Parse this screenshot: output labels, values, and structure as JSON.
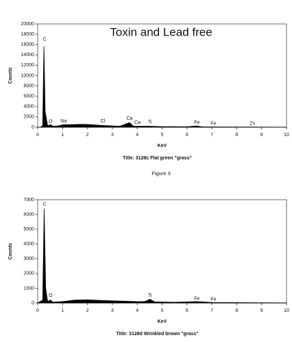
{
  "chart_data": [
    {
      "type": "area",
      "title": "Toxin and Lead free",
      "y_label": "Counts",
      "x_label": "KeV",
      "caption": "Title: 3128c Flat green \"grass\"",
      "color": "#000000",
      "title_color": "#e8802e",
      "xlim": [
        0,
        10
      ],
      "xticks": [
        0,
        1,
        2,
        3,
        4,
        5,
        6,
        7,
        8,
        9,
        10
      ],
      "ylim": [
        0,
        20000
      ],
      "yticks": [
        0,
        2000,
        4000,
        6000,
        8000,
        10000,
        12000,
        14000,
        16000,
        18000,
        20000
      ],
      "x": [
        0,
        0.1,
        0.2,
        0.25,
        0.3,
        0.4,
        0.52,
        0.6,
        0.8,
        1.04,
        1.3,
        1.6,
        2.0,
        2.6,
        2.8,
        3.3,
        3.69,
        3.85,
        4.5,
        5,
        6,
        6.4,
        6.6,
        7,
        8,
        8.6,
        9,
        10
      ],
      "values": [
        0,
        0,
        300,
        15700,
        3000,
        300,
        500,
        200,
        250,
        500,
        500,
        550,
        550,
        350,
        300,
        200,
        900,
        200,
        200,
        120,
        100,
        250,
        80,
        60,
        40,
        40,
        30,
        20
      ],
      "annotations": [
        {
          "text": "C",
          "x": 0.28,
          "y": 17000
        },
        {
          "text": "O",
          "x": 0.52,
          "y": 1100
        },
        {
          "text": "Na",
          "x": 1.04,
          "y": 1200
        },
        {
          "text": "Cl",
          "x": 2.62,
          "y": 1200
        },
        {
          "text": "Ca",
          "x": 3.69,
          "y": 1700
        },
        {
          "text": "Ca",
          "x": 4.01,
          "y": 900
        },
        {
          "text": "Ti",
          "x": 4.51,
          "y": 1000
        },
        {
          "text": "Fe",
          "x": 6.4,
          "y": 900
        },
        {
          "text": "Fe",
          "x": 7.06,
          "y": 700
        },
        {
          "text": "Zn",
          "x": 8.63,
          "y": 700
        }
      ]
    },
    {
      "type": "area",
      "y_label": "Counts",
      "x_label": "KeV",
      "caption": "Title: 3128d Wrinkled brown \"grass\"",
      "color": "#000000",
      "xlim": [
        0,
        10
      ],
      "xticks": [
        0,
        1,
        2,
        3,
        4,
        5,
        6,
        7,
        8,
        9,
        10
      ],
      "ylim": [
        0,
        7000
      ],
      "yticks": [
        0,
        1000,
        2000,
        3000,
        4000,
        5000,
        6000,
        7000
      ],
      "x": [
        0,
        0.2,
        0.26,
        0.32,
        0.4,
        0.52,
        0.6,
        1.0,
        1.5,
        2.0,
        2.5,
        3,
        4,
        4.3,
        4.51,
        4.7,
        5.5,
        6.4,
        7,
        8,
        9,
        10
      ],
      "values": [
        0,
        200,
        6400,
        1000,
        100,
        200,
        60,
        100,
        200,
        220,
        180,
        150,
        100,
        100,
        250,
        80,
        50,
        100,
        40,
        25,
        15,
        10
      ],
      "annotations": [
        {
          "text": "C",
          "x": 0.28,
          "y": 6700
        },
        {
          "text": "O",
          "x": 0.52,
          "y": 500
        },
        {
          "text": "Ti",
          "x": 4.51,
          "y": 500
        },
        {
          "text": "Fe",
          "x": 6.4,
          "y": 300
        },
        {
          "text": "Fe",
          "x": 7.06,
          "y": 250
        }
      ]
    }
  ],
  "figure_caption": "Figure 3",
  "figure_caption_color": "#3a6fb0"
}
